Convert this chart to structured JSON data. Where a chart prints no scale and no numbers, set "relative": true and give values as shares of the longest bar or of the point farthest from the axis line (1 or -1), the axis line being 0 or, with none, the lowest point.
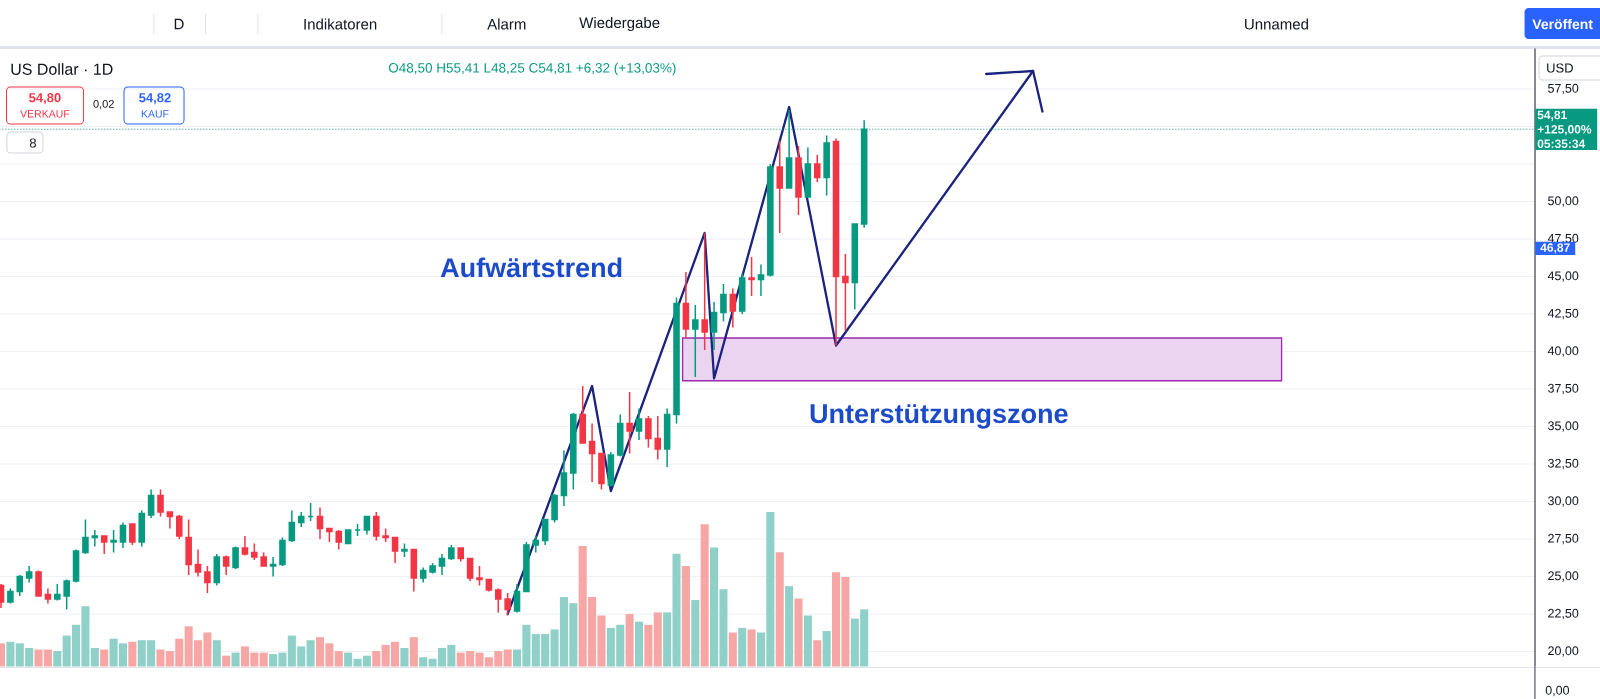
{
  "chart_data": [
    {
      "type": "candlestick",
      "title": "US Dollar · 1D",
      "subtitle": "O48,50 H55,41 L48,25 C54,81 +6,32 (+13,03%)",
      "categories": [
        null,
        null,
        null,
        null,
        null,
        null,
        null,
        null,
        null,
        null,
        null,
        null,
        null,
        null,
        null,
        null,
        null,
        null,
        null,
        null,
        null,
        null,
        null,
        null,
        null,
        null,
        null,
        null,
        null,
        null,
        null,
        null,
        null,
        null,
        null,
        null,
        null,
        null,
        null,
        null,
        null,
        null,
        null,
        null,
        null,
        null,
        null,
        null,
        null,
        null,
        null,
        null,
        null,
        null,
        null,
        null,
        null,
        null,
        null,
        null,
        null,
        null,
        null,
        null,
        null,
        null,
        null,
        null,
        null,
        null,
        null,
        null,
        null,
        null,
        null,
        null,
        null,
        null,
        null,
        null,
        null,
        null,
        null,
        null,
        null,
        null,
        null,
        null,
        null,
        null,
        null,
        null,
        null,
        null,
        null,
        null,
        null,
        null,
        null,
        null,
        null,
        null,
        null,
        null,
        null,
        null,
        null,
        null,
        null,
        null,
        null,
        null,
        null,
        null,
        null,
        null,
        null,
        null,
        null,
        null,
        null,
        null,
        null,
        null,
        null,
        null,
        null,
        null,
        null,
        null,
        null,
        null,
        null,
        null,
        null,
        null,
        null,
        null,
        null,
        null,
        null,
        null,
        null,
        null,
        null,
        null,
        null,
        null,
        null,
        null,
        null,
        null,
        null,
        null,
        null,
        null,
        null,
        null,
        null,
        null,
        null,
        null,
        null,
        null
      ],
      "ohlc": [
        [
          24.4,
          24.5,
          22.9,
          23.3
        ],
        [
          23.3,
          24.2,
          23.2,
          24.0
        ],
        [
          24.0,
          25.1,
          23.7,
          25.0
        ],
        [
          24.9,
          25.7,
          24.6,
          25.3
        ],
        [
          25.3,
          25.4,
          23.7,
          23.7
        ],
        [
          23.8,
          24.2,
          23.2,
          23.5
        ],
        [
          23.5,
          24.5,
          23.4,
          23.8
        ],
        [
          23.7,
          24.8,
          22.8,
          24.7
        ],
        [
          24.7,
          26.8,
          24.6,
          26.7
        ],
        [
          26.6,
          28.8,
          26.5,
          27.6
        ],
        [
          27.6,
          28.1,
          27.0,
          27.7
        ],
        [
          27.7,
          27.7,
          26.5,
          27.3
        ],
        [
          27.3,
          28.1,
          26.6,
          27.4
        ],
        [
          27.3,
          28.6,
          26.9,
          28.4
        ],
        [
          28.5,
          28.5,
          27.1,
          27.3
        ],
        [
          27.3,
          29.4,
          27.0,
          29.2
        ],
        [
          29.1,
          30.8,
          28.9,
          30.4
        ],
        [
          30.4,
          30.8,
          29.0,
          29.3
        ],
        [
          29.3,
          29.3,
          28.2,
          29.0
        ],
        [
          29.0,
          29.1,
          27.5,
          27.7
        ],
        [
          27.6,
          28.8,
          25.1,
          25.8
        ],
        [
          25.8,
          26.8,
          25.0,
          25.3
        ],
        [
          25.3,
          25.7,
          23.9,
          24.6
        ],
        [
          24.6,
          26.5,
          24.4,
          26.3
        ],
        [
          26.3,
          26.4,
          25.1,
          25.7
        ],
        [
          25.6,
          27.0,
          25.5,
          26.9
        ],
        [
          26.9,
          27.7,
          26.4,
          26.5
        ],
        [
          26.6,
          27.2,
          26.1,
          26.3
        ],
        [
          26.3,
          26.6,
          25.7,
          25.7
        ],
        [
          25.7,
          26.3,
          25.0,
          25.8
        ],
        [
          25.8,
          27.6,
          25.7,
          27.4
        ],
        [
          27.4,
          29.4,
          27.3,
          28.6
        ],
        [
          28.6,
          29.3,
          28.3,
          29.0
        ],
        [
          29.0,
          29.9,
          28.7,
          29.0
        ],
        [
          29.0,
          29.6,
          27.5,
          28.2
        ],
        [
          28.2,
          28.2,
          27.3,
          28.0
        ],
        [
          28.0,
          28.1,
          26.8,
          27.3
        ],
        [
          27.2,
          28.1,
          27.2,
          28.1
        ],
        [
          28.1,
          28.5,
          27.7,
          28.1
        ],
        [
          28.1,
          29.0,
          27.8,
          29.0
        ],
        [
          29.0,
          29.3,
          27.4,
          27.7
        ],
        [
          27.7,
          28.2,
          27.3,
          27.6
        ],
        [
          27.6,
          27.6,
          25.9,
          26.7
        ],
        [
          26.7,
          27.2,
          26.3,
          26.8
        ],
        [
          26.8,
          26.8,
          24.0,
          24.9
        ],
        [
          24.9,
          25.6,
          24.6,
          25.4
        ],
        [
          25.3,
          25.9,
          25.2,
          25.7
        ],
        [
          25.7,
          26.5,
          25.1,
          26.2
        ],
        [
          26.2,
          27.1,
          26.1,
          26.9
        ],
        [
          26.9,
          26.9,
          26.0,
          26.2
        ],
        [
          26.2,
          26.2,
          24.7,
          24.9
        ],
        [
          24.9,
          25.7,
          24.4,
          24.8
        ],
        [
          24.8,
          24.8,
          24.0,
          24.1
        ],
        [
          24.1,
          24.2,
          22.6,
          23.5
        ],
        [
          23.5,
          23.9,
          22.4,
          22.8
        ],
        [
          22.7,
          24.5,
          22.6,
          24.0
        ],
        [
          24.0,
          27.3,
          24.0,
          27.1
        ],
        [
          27.1,
          27.7,
          26.6,
          27.4
        ],
        [
          27.4,
          28.8,
          27.1,
          28.8
        ],
        [
          28.8,
          30.5,
          28.6,
          30.4
        ],
        [
          30.4,
          33.4,
          29.7,
          31.9
        ],
        [
          31.9,
          35.9,
          30.8,
          35.8
        ],
        [
          35.8,
          37.7,
          33.9,
          33.9
        ],
        [
          34.0,
          35.2,
          31.3,
          33.2
        ],
        [
          33.2,
          33.2,
          30.8,
          31.2
        ],
        [
          31.1,
          33.3,
          31.0,
          33.1
        ],
        [
          33.1,
          35.8,
          33.0,
          35.2
        ],
        [
          35.2,
          37.3,
          33.2,
          34.7
        ],
        [
          34.7,
          36.2,
          34.1,
          35.5
        ],
        [
          35.5,
          35.7,
          33.6,
          34.2
        ],
        [
          34.2,
          35.7,
          32.8,
          33.5
        ],
        [
          33.5,
          36.2,
          32.3,
          35.8
        ],
        [
          35.8,
          43.6,
          35.2,
          43.2
        ],
        [
          43.2,
          45.3,
          40.9,
          41.5
        ],
        [
          41.5,
          43.1,
          38.3,
          42.1
        ],
        [
          42.1,
          47.9,
          40.1,
          41.3
        ],
        [
          41.3,
          43.3,
          40.1,
          42.6
        ],
        [
          42.6,
          44.5,
          42.0,
          43.8
        ],
        [
          43.8,
          44.2,
          41.6,
          42.7
        ],
        [
          42.7,
          45.2,
          42.5,
          44.9
        ],
        [
          44.9,
          46.3,
          43.7,
          44.8
        ],
        [
          44.8,
          45.8,
          43.7,
          45.1
        ],
        [
          45.1,
          52.5,
          45.0,
          52.3
        ],
        [
          52.3,
          54.0,
          47.9,
          50.9
        ],
        [
          50.9,
          56.1,
          50.9,
          52.9
        ],
        [
          52.9,
          53.7,
          49.1,
          50.3
        ],
        [
          50.3,
          53.6,
          50.3,
          52.5
        ],
        [
          52.5,
          53.1,
          51.3,
          51.6
        ],
        [
          51.6,
          54.4,
          50.4,
          53.9
        ],
        [
          54.0,
          54.2,
          40.4,
          45.0
        ],
        [
          45.0,
          46.5,
          41.4,
          44.6
        ],
        [
          44.6,
          48.5,
          42.8,
          48.5
        ],
        [
          48.5,
          55.41,
          48.25,
          54.81
        ],
        null,
        null,
        null,
        null,
        null,
        null,
        null,
        null,
        null,
        null,
        null,
        null,
        null,
        null,
        null,
        null,
        null,
        null,
        null,
        null,
        null,
        null,
        null,
        null,
        null,
        null,
        null,
        null,
        null,
        null,
        null,
        null,
        null,
        null,
        null,
        null,
        null,
        null,
        null,
        null,
        null,
        null,
        null,
        null,
        null,
        null,
        null,
        null,
        null,
        null,
        null,
        null,
        null,
        null,
        null,
        null,
        null,
        null,
        null,
        null,
        null,
        null,
        null,
        null,
        null,
        null,
        null,
        null,
        null,
        null,
        null
      ],
      "colors": [
        "#f23645",
        "#089981",
        "#089981",
        "#089981",
        "#f23645",
        "#f23645",
        "#089981",
        "#089981",
        "#089981",
        "#089981",
        "#089981",
        "#f23645",
        "#089981",
        "#089981",
        "#f23645",
        "#089981",
        "#089981",
        "#f23645",
        "#f23645",
        "#f23645",
        "#f23645",
        "#f23645",
        "#f23645",
        "#089981",
        "#f23645",
        "#089981",
        "#f23645",
        "#f23645",
        "#f23645",
        "#089981",
        "#089981",
        "#089981",
        "#089981",
        "#089981",
        "#f23645",
        "#f23645",
        "#f23645",
        "#089981",
        "#089981",
        "#089981",
        "#f23645",
        "#f23645",
        "#f23645",
        "#089981",
        "#f23645",
        "#089981",
        "#089981",
        "#089981",
        "#089981",
        "#f23645",
        "#f23645",
        "#f23645",
        "#f23645",
        "#f23645",
        "#f23645",
        "#089981",
        "#089981",
        "#089981",
        "#089981",
        "#089981",
        "#089981",
        "#089981",
        "#f23645",
        "#f23645",
        "#f23645",
        "#089981",
        "#089981",
        "#f23645",
        "#089981",
        "#f23645",
        "#f23645",
        "#089981",
        "#089981",
        "#f23645",
        "#089981",
        "#f23645",
        "#089981",
        "#089981",
        "#f23645",
        "#089981",
        "#f23645",
        "#089981",
        "#089981",
        "#f23645",
        "#089981",
        "#f23645",
        "#089981",
        "#f23645",
        "#089981",
        "#f23645",
        "#f23645",
        "#089981",
        "#089981",
        null,
        null,
        null,
        null,
        null,
        null,
        null,
        null,
        null,
        null,
        null,
        null,
        null,
        null,
        null,
        null,
        null,
        null,
        null,
        null,
        null,
        null,
        null,
        null,
        null,
        null,
        null,
        null,
        null,
        null,
        null,
        null,
        null,
        null,
        null,
        null,
        null,
        null,
        null,
        null,
        null,
        null,
        null,
        null,
        null,
        null,
        null,
        null,
        null,
        null,
        null,
        null,
        null,
        null,
        null,
        null,
        null,
        null,
        null,
        null,
        null,
        null,
        null,
        null,
        null,
        null,
        null,
        null,
        null,
        null,
        null
      ],
      "series": [
        {
          "type": "line",
          "color": "#1a237e",
          "values": [
            null,
            null,
            null,
            null,
            null,
            null,
            null,
            null,
            null,
            null,
            null,
            null,
            null,
            null,
            null,
            null,
            null,
            null,
            null,
            null,
            null,
            null,
            null,
            null,
            null,
            null,
            null,
            null,
            null,
            null,
            null,
            null,
            null,
            null,
            null,
            null,
            null,
            null,
            null,
            null,
            null,
            null,
            null,
            null,
            null,
            null,
            null,
            null,
            null,
            null,
            null,
            null,
            null,
            null,
            22.5,
            null,
            null,
            null,
            null,
            null,
            null,
            null,
            null,
            37.7,
            null,
            30.7,
            null,
            null,
            null,
            null,
            null,
            null,
            null,
            null,
            null,
            47.9,
            38.2,
            null,
            null,
            null,
            null,
            null,
            null,
            null,
            56.3,
            null,
            null,
            null,
            null,
            40.4,
            null,
            null,
            null,
            null,
            null,
            null,
            null,
            null,
            null,
            null,
            null,
            null,
            null,
            null,
            null,
            null,
            null,
            null,
            null,
            null,
            58.7,
            null,
            null,
            null,
            null,
            null,
            null,
            null,
            null,
            null,
            null,
            null,
            null,
            null,
            null,
            null,
            null,
            null,
            null,
            null,
            null,
            null,
            null,
            null,
            null,
            null,
            null,
            null,
            null,
            null,
            null,
            null,
            null,
            null,
            null,
            null,
            null,
            null,
            null,
            null,
            null,
            null,
            null,
            null,
            null,
            null,
            null,
            null,
            null,
            null,
            null,
            null,
            null,
            null
          ]
        },
        {
          "type": "line",
          "color": "#1a237e",
          "values": [
            null,
            null,
            null,
            null,
            null,
            null,
            null,
            null,
            null,
            null,
            null,
            null,
            null,
            null,
            null,
            null,
            null,
            null,
            null,
            null,
            null,
            null,
            null,
            null,
            null,
            null,
            null,
            null,
            null,
            null,
            null,
            null,
            null,
            null,
            null,
            null,
            null,
            null,
            null,
            null,
            null,
            null,
            null,
            null,
            null,
            null,
            null,
            null,
            null,
            null,
            null,
            null,
            null,
            null,
            null,
            null,
            null,
            null,
            null,
            null,
            null,
            null,
            null,
            null,
            null,
            null,
            null,
            null,
            null,
            null,
            null,
            null,
            null,
            null,
            null,
            null,
            null,
            null,
            null,
            null,
            null,
            null,
            null,
            null,
            null,
            null,
            null,
            null,
            null,
            null,
            null,
            null,
            null,
            null,
            null,
            null,
            null,
            null,
            null,
            null,
            null,
            null,
            null,
            null,
            null,
            58.5,
            null,
            null,
            null,
            null,
            58.7,
            56.0,
            null,
            null,
            null,
            null,
            null,
            null,
            null,
            null,
            null,
            null,
            null,
            null,
            null,
            null,
            null,
            null,
            null,
            null,
            null,
            null,
            null,
            null,
            null,
            null,
            null,
            null,
            null,
            null,
            null,
            null,
            null,
            null,
            null,
            null,
            null,
            null,
            null,
            null,
            null,
            null,
            null,
            null,
            null,
            null,
            null,
            null,
            null,
            null,
            null,
            null,
            null,
            null
          ]
        }
      ],
      "ylim": [
        19.0,
        60.2
      ],
      "yticks": [
        {
          "value": 20,
          "label": "20,00"
        },
        {
          "value": 22.5,
          "label": "22,50"
        },
        {
          "value": 25,
          "label": "25,00"
        },
        {
          "value": 27.5,
          "label": "27,50"
        },
        {
          "value": 30,
          "label": "30,00"
        },
        {
          "value": 32.5,
          "label": "32,50"
        },
        {
          "value": 35,
          "label": "35,00"
        },
        {
          "value": 37.5,
          "label": "37,50"
        },
        {
          "value": 40,
          "label": "40,00"
        },
        {
          "value": 42.5,
          "label": "42,50"
        },
        {
          "value": 45,
          "label": "45,00"
        },
        {
          "value": 47.5,
          "label": "47,50"
        },
        {
          "value": 50,
          "label": "50,00"
        },
        {
          "value": 52.5,
          "label": null
        },
        {
          "value": 55,
          "label": null
        },
        {
          "value": 57.5,
          "label": "57,50"
        }
      ],
      "grid": "y",
      "ref_lines": [
        {
          "axis": "y",
          "value": 54.81,
          "label": "54,81 +125,00% 05:35:34",
          "color": "#089981",
          "line_style": "dotted"
        }
      ],
      "bands": [
        {
          "axis": "y",
          "from": 38.05,
          "to": 40.9,
          "label": "Unterstützungszone",
          "color": "#9c27b0"
        }
      ],
      "annotations": [
        "Aufwärtstrend",
        "54,80",
        "VERKAUF",
        "0,02",
        "54,82",
        "KAUF",
        "8",
        "D",
        "Indikatoren",
        "Alarm",
        "Wiedergabe",
        "Unnamed",
        "Veröffent",
        "USD",
        "0,00",
        {
          "text": "46,87",
          "y": 46.87
        }
      ]
    },
    {
      "type": "bar",
      "relative": true,
      "categories": [
        null,
        null,
        null,
        null,
        null,
        null,
        null,
        null,
        null,
        null,
        null,
        null,
        null,
        null,
        null,
        null,
        null,
        null,
        null,
        null,
        null,
        null,
        null,
        null,
        null,
        null,
        null,
        null,
        null,
        null,
        null,
        null,
        null,
        null,
        null,
        null,
        null,
        null,
        null,
        null,
        null,
        null,
        null,
        null,
        null,
        null,
        null,
        null,
        null,
        null,
        null,
        null,
        null,
        null,
        null,
        null,
        null,
        null,
        null,
        null,
        null,
        null,
        null,
        null,
        null,
        null,
        null,
        null,
        null,
        null,
        null,
        null,
        null,
        null,
        null,
        null,
        null,
        null,
        null,
        null,
        null,
        null,
        null,
        null,
        null,
        null,
        null,
        null,
        null,
        null,
        null,
        null,
        null,
        null,
        null,
        null,
        null,
        null,
        null,
        null,
        null,
        null,
        null,
        null,
        null,
        null,
        null,
        null,
        null,
        null,
        null,
        null,
        null,
        null,
        null,
        null,
        null,
        null,
        null,
        null,
        null,
        null,
        null,
        null,
        null,
        null,
        null,
        null,
        null,
        null,
        null,
        null,
        null,
        null,
        null,
        null,
        null,
        null,
        null,
        null,
        null,
        null,
        null,
        null,
        null,
        null,
        null,
        null,
        null,
        null,
        null,
        null,
        null,
        null,
        null,
        null,
        null,
        null,
        null,
        null,
        null,
        null,
        null,
        null
      ],
      "values": [
        0.15,
        0.16,
        0.15,
        0.12,
        0.11,
        0.11,
        0.1,
        0.2,
        0.27,
        0.39,
        0.12,
        0.11,
        0.18,
        0.15,
        0.16,
        0.17,
        0.17,
        0.11,
        0.1,
        0.18,
        0.26,
        0.17,
        0.22,
        0.17,
        0.07,
        0.09,
        0.13,
        0.09,
        0.09,
        0.08,
        0.09,
        0.2,
        0.13,
        0.17,
        0.19,
        0.15,
        0.1,
        0.09,
        0.05,
        0.07,
        0.1,
        0.14,
        0.16,
        0.12,
        0.19,
        0.06,
        0.05,
        0.12,
        0.14,
        0.09,
        0.1,
        0.09,
        0.06,
        0.1,
        0.11,
        0.11,
        0.27,
        0.21,
        0.21,
        0.24,
        0.45,
        0.41,
        0.78,
        0.45,
        0.33,
        0.25,
        0.27,
        0.34,
        0.29,
        0.27,
        0.35,
        0.35,
        0.73,
        0.65,
        0.43,
        0.92,
        0.77,
        0.5,
        0.22,
        0.25,
        0.24,
        0.22,
        1.0,
        0.74,
        0.52,
        0.44,
        0.33,
        0.17,
        0.23,
        0.61,
        0.58,
        0.31,
        0.37,
        null,
        null,
        null,
        null,
        null,
        null,
        null,
        null,
        null,
        null,
        null,
        null,
        null,
        null,
        null,
        null,
        null,
        null,
        null,
        null,
        null,
        null,
        null,
        null,
        null,
        null,
        null,
        null,
        null,
        null,
        null,
        null,
        null,
        null,
        null,
        null,
        null,
        null,
        null,
        null,
        null,
        null,
        null,
        null,
        null,
        null,
        null,
        null,
        null,
        null,
        null,
        null,
        null,
        null,
        null,
        null,
        null,
        null,
        null,
        null,
        null,
        null,
        null,
        null,
        null,
        null,
        null,
        null,
        null,
        null,
        null
      ],
      "colors": [
        "#f6a6a4",
        "#8fd0c8",
        "#8fd0c8",
        "#8fd0c8",
        "#f6a6a4",
        "#f6a6a4",
        "#8fd0c8",
        "#8fd0c8",
        "#8fd0c8",
        "#8fd0c8",
        "#8fd0c8",
        "#f6a6a4",
        "#8fd0c8",
        "#8fd0c8",
        "#f6a6a4",
        "#8fd0c8",
        "#8fd0c8",
        "#f6a6a4",
        "#f6a6a4",
        "#f6a6a4",
        "#f6a6a4",
        "#f6a6a4",
        "#f6a6a4",
        "#8fd0c8",
        "#f6a6a4",
        "#8fd0c8",
        "#f6a6a4",
        "#f6a6a4",
        "#f6a6a4",
        "#8fd0c8",
        "#8fd0c8",
        "#8fd0c8",
        "#8fd0c8",
        "#8fd0c8",
        "#f6a6a4",
        "#f6a6a4",
        "#f6a6a4",
        "#8fd0c8",
        "#8fd0c8",
        "#8fd0c8",
        "#f6a6a4",
        "#f6a6a4",
        "#f6a6a4",
        "#8fd0c8",
        "#f6a6a4",
        "#8fd0c8",
        "#8fd0c8",
        "#8fd0c8",
        "#8fd0c8",
        "#f6a6a4",
        "#f6a6a4",
        "#f6a6a4",
        "#f6a6a4",
        "#f6a6a4",
        "#f6a6a4",
        "#8fd0c8",
        "#8fd0c8",
        "#8fd0c8",
        "#8fd0c8",
        "#8fd0c8",
        "#8fd0c8",
        "#8fd0c8",
        "#f6a6a4",
        "#f6a6a4",
        "#f6a6a4",
        "#8fd0c8",
        "#8fd0c8",
        "#f6a6a4",
        "#8fd0c8",
        "#f6a6a4",
        "#f6a6a4",
        "#8fd0c8",
        "#8fd0c8",
        "#f6a6a4",
        "#8fd0c8",
        "#f6a6a4",
        "#8fd0c8",
        "#8fd0c8",
        "#f6a6a4",
        "#8fd0c8",
        "#f6a6a4",
        "#8fd0c8",
        "#8fd0c8",
        "#f6a6a4",
        "#8fd0c8",
        "#f6a6a4",
        "#8fd0c8",
        "#f6a6a4",
        "#8fd0c8",
        "#f6a6a4",
        "#f6a6a4",
        "#8fd0c8",
        "#8fd0c8",
        null,
        null,
        null,
        null,
        null,
        null,
        null,
        null,
        null,
        null,
        null,
        null,
        null,
        null,
        null,
        null,
        null,
        null,
        null,
        null,
        null,
        null,
        null,
        null,
        null,
        null,
        null,
        null,
        null,
        null,
        null,
        null,
        null,
        null,
        null,
        null,
        null,
        null,
        null,
        null,
        null,
        null,
        null,
        null,
        null,
        null,
        null,
        null,
        null,
        null,
        null,
        null,
        null,
        null,
        null,
        null,
        null,
        null,
        null,
        null,
        null,
        null,
        null,
        null,
        null,
        null,
        null,
        null,
        null,
        null,
        null
      ]
    }
  ]
}
